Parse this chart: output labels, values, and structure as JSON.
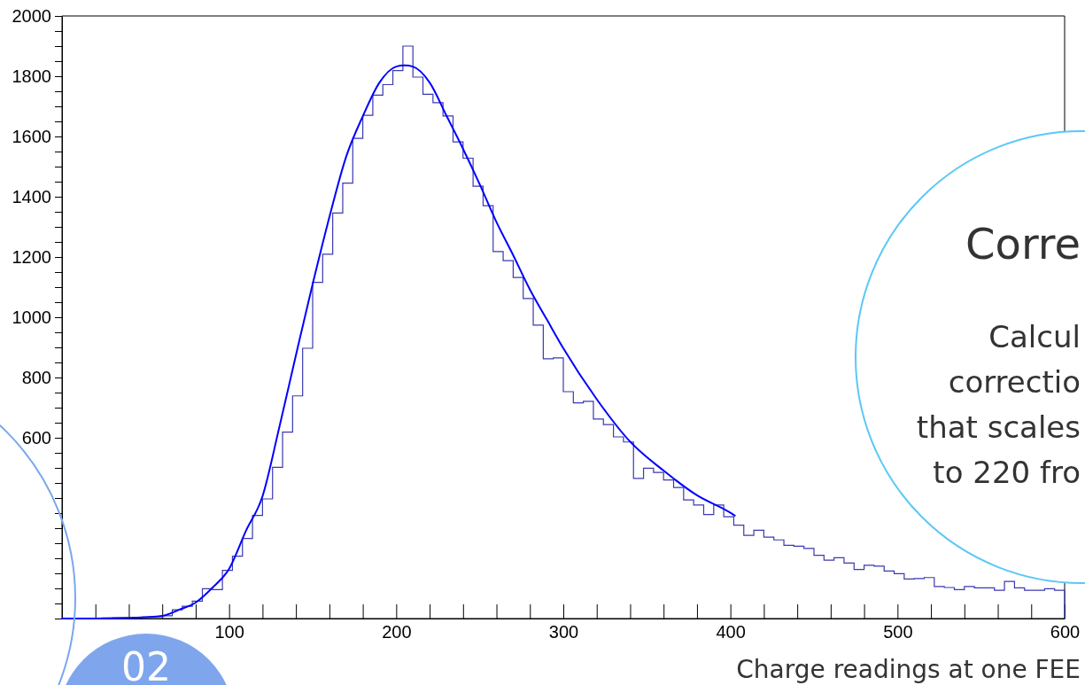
{
  "chart_data": {
    "type": "histogram",
    "xlabel": "Charge readings at one FEE",
    "xlim": [
      0,
      600
    ],
    "ylim": [
      0,
      2000
    ],
    "xticks": [
      {
        "value": 20,
        "label": null
      },
      {
        "value": 40,
        "label": null
      },
      {
        "value": 60,
        "label": null
      },
      {
        "value": 80,
        "label": null
      },
      100,
      {
        "value": 120,
        "label": null
      },
      {
        "value": 140,
        "label": null
      },
      {
        "value": 160,
        "label": null
      },
      {
        "value": 180,
        "label": null
      },
      200,
      {
        "value": 220,
        "label": null
      },
      {
        "value": 240,
        "label": null
      },
      {
        "value": 260,
        "label": null
      },
      {
        "value": 280,
        "label": null
      },
      300,
      {
        "value": 320,
        "label": null
      },
      {
        "value": 340,
        "label": null
      },
      {
        "value": 360,
        "label": null
      },
      {
        "value": 380,
        "label": null
      },
      400,
      {
        "value": 420,
        "label": null
      },
      {
        "value": 440,
        "label": null
      },
      {
        "value": 460,
        "label": null
      },
      {
        "value": 480,
        "label": null
      },
      500,
      {
        "value": 520,
        "label": null
      },
      {
        "value": 540,
        "label": null
      },
      {
        "value": 560,
        "label": null
      },
      {
        "value": 580,
        "label": null
      },
      600
    ],
    "yticks": [
      {
        "value": 0,
        "label": null
      },
      {
        "value": 50,
        "label": null
      },
      {
        "value": 100,
        "label": null
      },
      {
        "value": 150,
        "label": null
      },
      {
        "value": 200,
        "label": null
      },
      {
        "value": 250,
        "label": null
      },
      {
        "value": 300,
        "label": null
      },
      {
        "value": 350,
        "label": null
      },
      {
        "value": 400,
        "label": null
      },
      {
        "value": 450,
        "label": null
      },
      {
        "value": 500,
        "label": null
      },
      {
        "value": 550,
        "label": null
      },
      600,
      {
        "value": 650,
        "label": null
      },
      {
        "value": 700,
        "label": null
      },
      {
        "value": 750,
        "label": null
      },
      800,
      {
        "value": 850,
        "label": null
      },
      {
        "value": 900,
        "label": null
      },
      {
        "value": 950,
        "label": null
      },
      1000,
      {
        "value": 1050,
        "label": null
      },
      {
        "value": 1100,
        "label": null
      },
      {
        "value": 1150,
        "label": null
      },
      1200,
      {
        "value": 1250,
        "label": null
      },
      {
        "value": 1300,
        "label": null
      },
      {
        "value": 1350,
        "label": null
      },
      1400,
      {
        "value": 1450,
        "label": null
      },
      {
        "value": 1500,
        "label": null
      },
      {
        "value": 1550,
        "label": null
      },
      1600,
      {
        "value": 1650,
        "label": null
      },
      {
        "value": 1700,
        "label": null
      },
      {
        "value": 1750,
        "label": null
      },
      1800,
      {
        "value": 1850,
        "label": null
      },
      {
        "value": 1900,
        "label": null
      },
      {
        "value": 1950,
        "label": null
      },
      2000
    ],
    "grid": false,
    "bins": [
      0,
      6,
      12,
      18,
      24,
      30,
      36,
      42,
      48,
      54,
      60,
      66,
      72,
      78,
      84,
      90,
      96,
      102,
      108,
      114,
      120,
      126,
      132,
      138,
      144,
      150,
      156,
      162,
      168,
      174,
      180,
      186,
      192,
      198,
      204,
      210,
      216,
      222,
      228,
      234,
      240,
      246,
      252,
      258,
      264,
      270,
      276,
      282,
      288,
      294,
      300,
      306,
      312,
      318,
      324,
      330,
      336,
      342,
      348,
      354,
      360,
      366,
      372,
      378,
      384,
      390,
      396,
      402,
      408,
      414,
      420,
      426,
      432,
      438,
      444,
      450,
      456,
      462,
      468,
      474,
      480,
      486,
      492,
      498,
      504,
      510,
      516,
      522,
      528,
      534,
      540,
      546,
      552,
      558,
      564,
      570,
      576,
      582,
      588,
      594,
      600
    ],
    "series": [
      {
        "color": "#3a3ab0",
        "values": [
          0,
          0,
          1,
          1,
          2,
          3,
          3,
          4,
          5,
          6,
          9,
          29,
          41,
          58,
          99,
          96,
          160,
          207,
          266,
          342,
          397,
          502,
          619,
          739,
          897,
          1116,
          1209,
          1346,
          1445,
          1594,
          1670,
          1737,
          1772,
          1819,
          1900,
          1797,
          1740,
          1712,
          1668,
          1582,
          1528,
          1435,
          1370,
          1218,
          1188,
          1132,
          1062,
          974,
          862,
          865,
          753,
          716,
          721,
          662,
          644,
          603,
          586,
          465,
          499,
          485,
          460,
          435,
          394,
          377,
          345,
          377,
          338,
          310,
          276,
          293,
          270,
          261,
          243,
          240,
          233,
          210,
          194,
          202,
          184,
          163,
          177,
          174,
          158,
          149,
          131,
          133,
          136,
          106,
          103,
          96,
          106,
          102,
          102,
          94,
          123,
          102,
          94,
          94,
          99,
          94
        ]
      },
      {
        "type": "line",
        "color": "#0000ff",
        "x": [
          0,
          20,
          40,
          60,
          70,
          80,
          90,
          100,
          110,
          120,
          130,
          140,
          150,
          160,
          170,
          180,
          190,
          200,
          205,
          210,
          220,
          230,
          240,
          250,
          260,
          270,
          280,
          290,
          300,
          320,
          340,
          360,
          380,
          400,
          403
        ],
        "values": [
          0,
          0,
          2,
          9,
          29,
          53,
          102,
          165,
          290,
          406,
          634,
          874,
          1110,
          1332,
          1532,
          1667,
          1779,
          1832,
          1836,
          1832,
          1779,
          1670,
          1559,
          1441,
          1316,
          1206,
          1092,
          994,
          897,
          728,
          587,
          491,
          409,
          351,
          340
        ]
      }
    ],
    "annotations": [
      "Corre",
      "Calcul",
      "correctio",
      "that scales",
      "to 220 fro",
      "02"
    ]
  }
}
